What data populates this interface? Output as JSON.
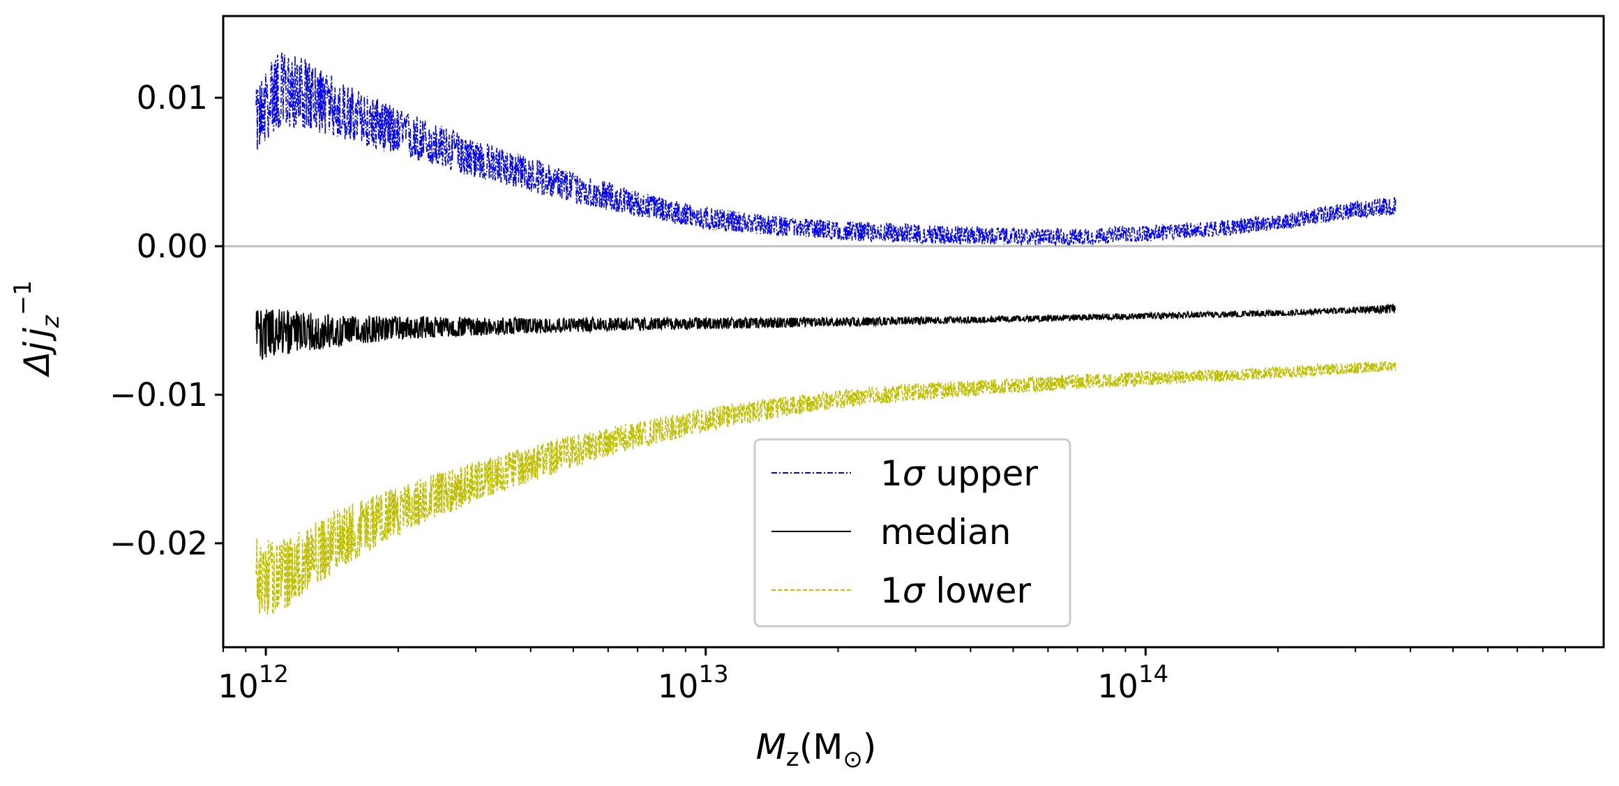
{
  "chart_data": {
    "type": "line",
    "title": "",
    "xlabel": "M_z(M_⊙)",
    "ylabel": "Δj j_z^-1",
    "xscale": "log",
    "xlim": [
      800000000000.0,
      1100000000000000.0
    ],
    "ylim": [
      -0.027,
      0.0155
    ],
    "x_ticks": [
      {
        "value": 1000000000000.0,
        "base": "10",
        "exp": "12"
      },
      {
        "value": 10000000000000.0,
        "base": "10",
        "exp": "13"
      },
      {
        "value": 100000000000000.0,
        "base": "10",
        "exp": "14"
      }
    ],
    "y_ticks": [
      {
        "value": 0.01,
        "label": "0.01"
      },
      {
        "value": 0.0,
        "label": "0.00"
      },
      {
        "value": -0.01,
        "label": "−0.01"
      },
      {
        "value": -0.02,
        "label": "−0.02"
      }
    ],
    "reference_line": {
      "y": 0.0,
      "color": "#bfbfbf"
    },
    "legend_position": "lower-center",
    "series": [
      {
        "name": "1σ upper",
        "legend_prefix": "1",
        "legend_symbol": "σ",
        "legend_suffix": " upper",
        "color": "#0000ff",
        "style": "dashdot",
        "x": [
          950000000000.0,
          1050000000000.0,
          1200000000000.0,
          1500000000000.0,
          2000000000000.0,
          3000000000000.0,
          5000000000000.0,
          7000000000000.0,
          10000000000000.0,
          15000000000000.0,
          20000000000000.0,
          30000000000000.0,
          50000000000000.0,
          70000000000000.0,
          100000000000000.0,
          150000000000000.0,
          200000000000000.0,
          300000000000000.0,
          370000000000000.0
        ],
        "values": [
          0.0085,
          0.01,
          0.01,
          0.0088,
          0.0075,
          0.0058,
          0.0039,
          0.0028,
          0.0018,
          0.0013,
          0.001,
          0.0008,
          0.0006,
          0.0006,
          0.0008,
          0.0012,
          0.0015,
          0.0023,
          0.0025
        ],
        "spread_low": [
          0.0023,
          0.0022,
          0.002,
          0.0016,
          0.0014,
          0.0012,
          0.001,
          0.0008,
          0.0007,
          0.0006,
          0.0006,
          0.0006,
          0.0005,
          0.0005,
          0.0005,
          0.0005,
          0.0004,
          0.0004,
          0.0004
        ],
        "spread_high": [
          0.002,
          0.0032,
          0.0028,
          0.0022,
          0.0018,
          0.0014,
          0.0011,
          0.0009,
          0.0008,
          0.0007,
          0.0007,
          0.0007,
          0.0006,
          0.0006,
          0.0006,
          0.0006,
          0.0006,
          0.0008,
          0.0008
        ]
      },
      {
        "name": "median",
        "legend_prefix": "",
        "legend_symbol": "",
        "legend_suffix": "median",
        "color": "#000000",
        "style": "solid",
        "x": [
          950000000000.0,
          1050000000000.0,
          1500000000000.0,
          2000000000000.0,
          3000000000000.0,
          5000000000000.0,
          10000000000000.0,
          20000000000000.0,
          50000000000000.0,
          100000000000000.0,
          200000000000000.0,
          300000000000000.0,
          370000000000000.0
        ],
        "values": [
          -0.006,
          -0.0058,
          -0.0057,
          -0.0055,
          -0.0054,
          -0.0053,
          -0.0052,
          -0.0051,
          -0.0049,
          -0.0047,
          -0.0045,
          -0.0043,
          -0.0042
        ],
        "spread_low": [
          0.0018,
          0.0016,
          0.001,
          0.0008,
          0.0006,
          0.0005,
          0.0004,
          0.0003,
          0.0002,
          0.0002,
          0.0002,
          0.0002,
          0.0003
        ],
        "spread_high": [
          0.0018,
          0.0016,
          0.001,
          0.0008,
          0.0006,
          0.0005,
          0.0004,
          0.0003,
          0.0002,
          0.0002,
          0.0002,
          0.0002,
          0.0003
        ]
      },
      {
        "name": "1σ lower",
        "legend_prefix": "1",
        "legend_symbol": "σ",
        "legend_suffix": " lower",
        "color": "#bfbf00",
        "style": "dashed",
        "x": [
          950000000000.0,
          1050000000000.0,
          1500000000000.0,
          2000000000000.0,
          3000000000000.0,
          5000000000000.0,
          7000000000000.0,
          10000000000000.0,
          15000000000000.0,
          20000000000000.0,
          30000000000000.0,
          50000000000000.0,
          70000000000000.0,
          100000000000000.0,
          150000000000000.0,
          200000000000000.0,
          300000000000000.0,
          370000000000000.0
        ],
        "values": [
          -0.022,
          -0.0225,
          -0.0195,
          -0.0178,
          -0.0158,
          -0.0138,
          -0.0127,
          -0.0117,
          -0.0108,
          -0.0103,
          -0.0098,
          -0.0094,
          -0.0091,
          -0.0089,
          -0.0087,
          -0.0085,
          -0.0082,
          -0.0081
        ],
        "spread_low": [
          0.0028,
          0.0025,
          0.002,
          0.0017,
          0.0014,
          0.0011,
          0.0009,
          0.0008,
          0.0007,
          0.0006,
          0.0006,
          0.0005,
          0.0005,
          0.0005,
          0.0004,
          0.0004,
          0.0004,
          0.0003
        ],
        "spread_high": [
          0.0028,
          0.0025,
          0.002,
          0.0017,
          0.0014,
          0.0011,
          0.0009,
          0.0008,
          0.0007,
          0.0006,
          0.0006,
          0.0005,
          0.0005,
          0.0005,
          0.0004,
          0.0004,
          0.0004,
          0.0003
        ]
      }
    ]
  }
}
